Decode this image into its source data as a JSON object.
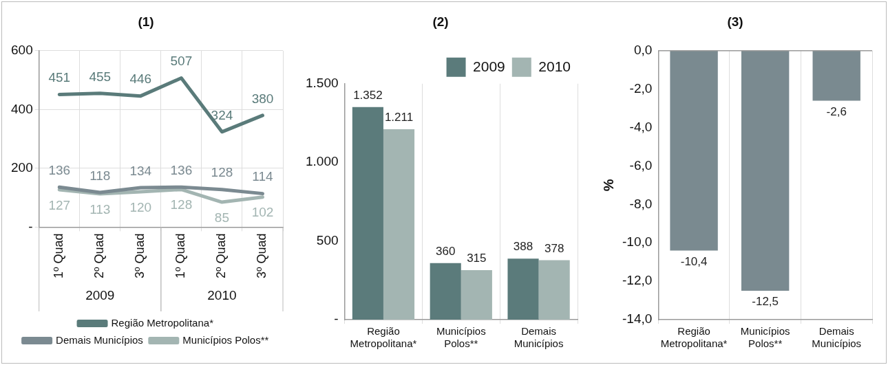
{
  "chart_data": [
    {
      "type": "line",
      "title": "(1)",
      "categories": [
        "1º Quad",
        "2º Quad",
        "3º Quad",
        "1º Quad",
        "2º Quad",
        "3º Quad"
      ],
      "series": [
        {
          "name": "Região Metropolitana*",
          "color": "#5a7b7a",
          "values": [
            451,
            455,
            446,
            507,
            324,
            380
          ]
        },
        {
          "name": "Demais Municípios",
          "color": "#7b8a91",
          "values": [
            136,
            118,
            134,
            136,
            128,
            114
          ]
        },
        {
          "name": "Municípios Polos**",
          "color": "#a3b5b2",
          "values": [
            127,
            113,
            120,
            128,
            85,
            102
          ]
        }
      ],
      "ylim": [
        0,
        600
      ],
      "yticks": [
        {
          "value": 0,
          "label": "-"
        },
        200,
        400,
        600
      ],
      "grid": true,
      "legend": "bottom",
      "data_labels": true,
      "marker": "none",
      "annotations": [
        "2009",
        "2010"
      ]
    },
    {
      "type": "bar",
      "title": "(2)",
      "categories": [
        "Região\nMetropolitana*",
        "Municípios\nPolos**",
        "Demais\nMunicípios"
      ],
      "series": [
        {
          "name": "2009",
          "color": "#5b7b7b",
          "values": [
            1352,
            360,
            388
          ],
          "value_labels": [
            "1.352",
            "360",
            "388"
          ]
        },
        {
          "name": "2010",
          "color": "#a3b5b2",
          "values": [
            1211,
            315,
            378
          ],
          "value_labels": [
            "1.211",
            "315",
            "378"
          ]
        }
      ],
      "ylim": [
        0,
        1500
      ],
      "yticks": [
        {
          "value": 0,
          "label": "-"
        },
        500,
        {
          "value": 1000,
          "label": "1.000"
        },
        {
          "value": 1500,
          "label": "1.500"
        }
      ],
      "grid": "x",
      "legend": "top right"
    },
    {
      "type": "bar",
      "title": "(3)",
      "ylabel": "%",
      "categories": [
        "Região\nMetropolitana*",
        "Municípios\nPolos**",
        "Demais\nMunicípios"
      ],
      "values": [
        -10.4,
        -12.5,
        -2.6
      ],
      "color": "#7a8a90",
      "value_labels": [
        "-10,4",
        "-12,5",
        "-2,6"
      ],
      "ylim": [
        -14,
        0
      ],
      "yticks": [
        {
          "value": 0,
          "label": "0,0"
        },
        {
          "value": -2,
          "label": "-2,0"
        },
        {
          "value": -4,
          "label": "-4,0"
        },
        {
          "value": -6,
          "label": "-6,0"
        },
        {
          "value": -8,
          "label": "-8,0"
        },
        {
          "value": -10,
          "label": "-10,0"
        },
        {
          "value": -12,
          "label": "-12,0"
        },
        {
          "value": -14,
          "label": "-14,0"
        }
      ],
      "grid": "x"
    }
  ]
}
